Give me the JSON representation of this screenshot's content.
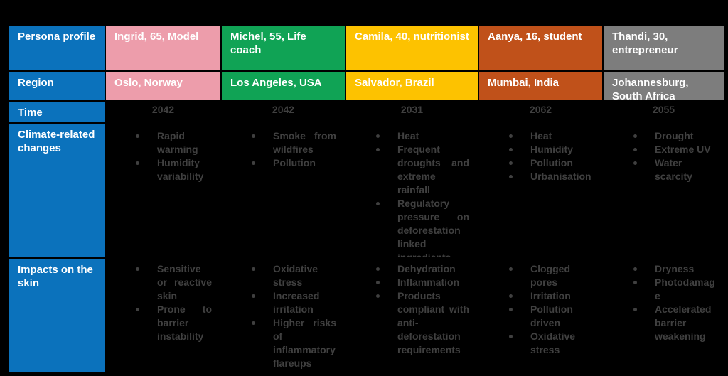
{
  "colors": {
    "background": "#000000",
    "header_blue": "#0B72BC",
    "body_text": "#404040",
    "header_text": "#FFFFFF"
  },
  "table": {
    "row_headers": [
      "Persona profile",
      "Region",
      "Time",
      "Climate-related changes",
      "Impacts on the skin"
    ],
    "columns": [
      {
        "persona": "Ingrid, 65, Model",
        "region": "Oslo, Norway",
        "time": "2042",
        "header_color": "#ED9DAB",
        "climate_changes": [
          "Rapid warming",
          "Humidity variability"
        ],
        "skin_impacts": [
          "Sensitive or reactive skin",
          "Prone to barrier instability"
        ]
      },
      {
        "persona": "Michel, 55, Life coach",
        "region": "Los Angeles, USA",
        "time": "2042",
        "header_color": "#10A355",
        "climate_changes": [
          "Smoke from wildfires",
          "Pollution"
        ],
        "skin_impacts": [
          "Oxidative stress",
          "Increased irritation",
          "Higher risks of inflammatory flareups"
        ]
      },
      {
        "persona": "Camila, 40, nutritionist",
        "region": "Salvador, Brazil",
        "time": "2031",
        "header_color": "#FDC200",
        "climate_changes": [
          "Heat",
          "Frequent droughts and extreme rainfall",
          "Regulatory pressure on deforestation linked ingredients"
        ],
        "skin_impacts": [
          "Dehydration",
          "Inflammation",
          "Products compliant with anti-deforestation requirements"
        ]
      },
      {
        "persona": "Aanya, 16, student",
        "region": "Mumbai, India",
        "time": "2062",
        "header_color": "#C0511A",
        "climate_changes": [
          "Heat",
          "Humidity",
          "Pollution",
          "Urbanisation"
        ],
        "skin_impacts": [
          "Clogged pores",
          "Irritation",
          "Pollution driven",
          "Oxidative stress"
        ]
      },
      {
        "persona": "Thandi, 30, entrepreneur",
        "region": "Johannesburg, South Africa",
        "time": "2055",
        "header_color": "#7D7D7D",
        "climate_changes": [
          "Drought",
          "Extreme UV",
          "Water scarcity"
        ],
        "skin_impacts": [
          "Dryness",
          "Photodamage",
          "Accelerated barrier weakening"
        ]
      }
    ]
  }
}
